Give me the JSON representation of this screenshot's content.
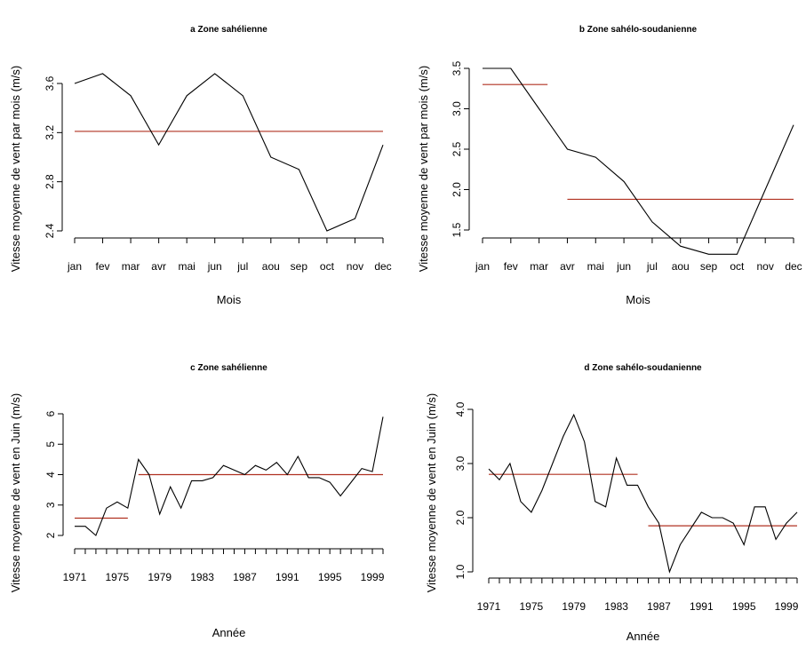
{
  "chart_data": [
    {
      "type": "line",
      "title": "a   Zone sahélienne",
      "xlabel": "Mois",
      "ylabel": "Vitesse moyenne de vent par mois (m/s)",
      "categories": [
        "jan",
        "fev",
        "mar",
        "avr",
        "mai",
        "jun",
        "jul",
        "aou",
        "sep",
        "oct",
        "nov",
        "dec"
      ],
      "values": [
        3.6,
        3.68,
        3.5,
        3.1,
        3.5,
        3.68,
        3.5,
        3.0,
        2.9,
        2.4,
        2.5,
        3.1
      ],
      "ylim": [
        2.4,
        3.7
      ],
      "yticks": [
        "2.4",
        "2.8",
        "3.2",
        "3.6"
      ],
      "ytick_values": [
        2.4,
        2.8,
        3.2,
        3.6
      ],
      "mean_lines": [
        {
          "x_from": 1,
          "x_to": 12,
          "y": 3.21
        }
      ]
    },
    {
      "type": "line",
      "title": "b   Zone sahélo-soudanienne",
      "xlabel": "Mois",
      "ylabel": "Vitesse moyenne de vent par mois (m/s)",
      "categories": [
        "jan",
        "fev",
        "mar",
        "avr",
        "mai",
        "jun",
        "jul",
        "aou",
        "sep",
        "oct",
        "nov",
        "dec"
      ],
      "values": [
        3.5,
        3.5,
        3.0,
        2.5,
        2.4,
        2.1,
        1.6,
        1.3,
        1.2,
        1.2,
        2.0,
        2.8
      ],
      "ylim": [
        1.2,
        3.6
      ],
      "yticks": [
        "1.5",
        "2.0",
        "2.5",
        "3.0",
        "3.5"
      ],
      "ytick_values": [
        1.5,
        2.0,
        2.5,
        3.0,
        3.5
      ],
      "mean_lines": [
        {
          "x_from": 1,
          "x_to": 3.3,
          "y": 3.3
        },
        {
          "x_from": 4,
          "x_to": 12,
          "y": 1.88
        }
      ]
    },
    {
      "type": "line",
      "title": "c   Zone sahélienne",
      "xlabel": "Année",
      "ylabel": "Vitesse moyenne de vent en Juin (m/s)",
      "x": [
        1971,
        1972,
        1973,
        1974,
        1975,
        1976,
        1977,
        1978,
        1979,
        1980,
        1981,
        1982,
        1983,
        1984,
        1985,
        1986,
        1987,
        1988,
        1989,
        1990,
        1991,
        1992,
        1993,
        1994,
        1995,
        1996,
        1997,
        1998,
        1999,
        2000
      ],
      "values": [
        2.3,
        2.3,
        2.0,
        2.9,
        3.1,
        2.9,
        4.5,
        4.0,
        2.7,
        3.6,
        2.9,
        3.8,
        3.8,
        3.9,
        4.3,
        4.15,
        4.0,
        4.3,
        4.15,
        4.4,
        4.0,
        4.6,
        3.9,
        3.9,
        3.75,
        3.3,
        3.75,
        4.2,
        4.1,
        5.9
      ],
      "xticks": [
        "1971",
        "1975",
        "1979",
        "1983",
        "1987",
        "1991",
        "1995",
        "1999"
      ],
      "xtick_values": [
        1971,
        1975,
        1979,
        1983,
        1987,
        1991,
        1995,
        1999
      ],
      "yticks": [
        "2",
        "3",
        "4",
        "5",
        "6"
      ],
      "ytick_values": [
        2,
        3,
        4,
        5,
        6
      ],
      "xlim": [
        1971,
        2000
      ],
      "ylim": [
        2,
        6
      ],
      "mean_lines": [
        {
          "x_from": 1971,
          "x_to": 1976,
          "y": 2.57
        },
        {
          "x_from": 1977,
          "x_to": 2000,
          "y": 4.0
        }
      ]
    },
    {
      "type": "line",
      "title": "d   Zone sahélo-soudanienne",
      "xlabel": "Année",
      "ylabel": "Vitesse moyenne de vent en Juin (m/s)",
      "x": [
        1971,
        1972,
        1973,
        1974,
        1975,
        1976,
        1977,
        1978,
        1979,
        1980,
        1981,
        1982,
        1983,
        1984,
        1985,
        1986,
        1987,
        1988,
        1989,
        1990,
        1991,
        1992,
        1993,
        1994,
        1995,
        1996,
        1997,
        1998,
        1999,
        2000
      ],
      "values": [
        2.9,
        2.7,
        3.0,
        2.3,
        2.1,
        2.5,
        3.0,
        3.5,
        3.9,
        3.4,
        2.3,
        2.2,
        3.1,
        2.6,
        2.6,
        2.2,
        1.9,
        1.0,
        1.5,
        1.8,
        2.1,
        2.0,
        2.0,
        1.9,
        1.5,
        2.2,
        2.2,
        1.6,
        1.9,
        2.1
      ],
      "xticks": [
        "1971",
        "1975",
        "1979",
        "1983",
        "1987",
        "1991",
        "1995",
        "1999"
      ],
      "xtick_values": [
        1971,
        1975,
        1979,
        1983,
        1987,
        1991,
        1995,
        1999
      ],
      "yticks": [
        "1.0",
        "2.0",
        "3.0",
        "4.0"
      ],
      "ytick_values": [
        1.0,
        2.0,
        3.0,
        4.0
      ],
      "xlim": [
        1971,
        2000
      ],
      "ylim": [
        1.0,
        4.0
      ],
      "mean_lines": [
        {
          "x_from": 1971,
          "x_to": 1985,
          "y": 2.8
        },
        {
          "x_from": 1986,
          "x_to": 2000,
          "y": 1.85
        }
      ]
    }
  ]
}
